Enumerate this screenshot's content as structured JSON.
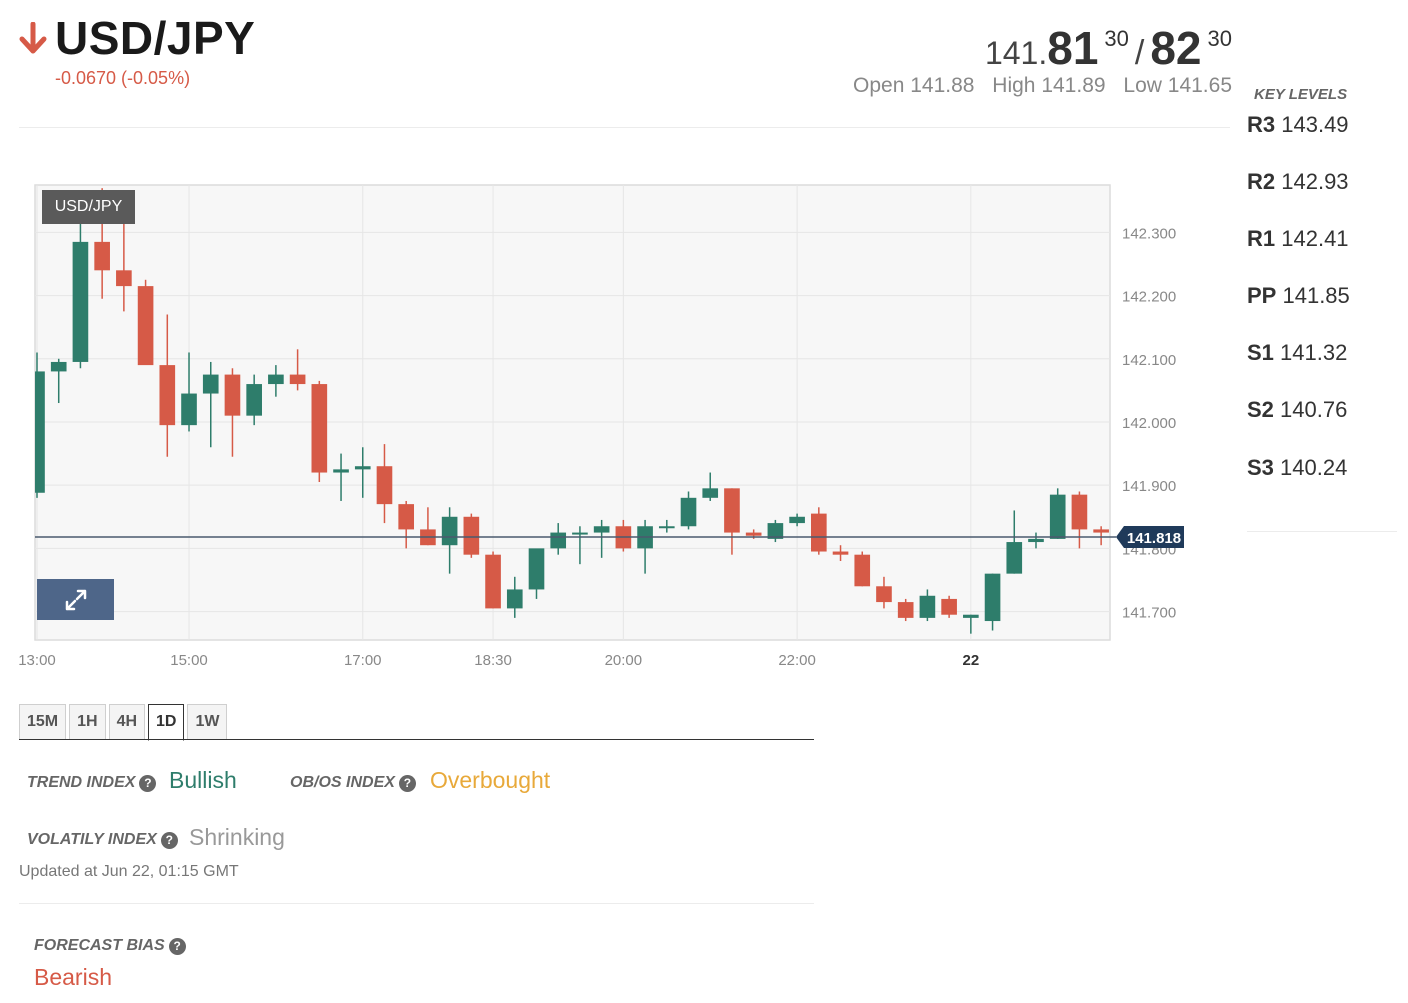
{
  "header": {
    "pair": "USD/JPY",
    "change": "-0.0670 (-0.05%)",
    "quote": {
      "bid_prefix": "141.",
      "bid_main": "81",
      "bid_sup": "30",
      "separator": "/",
      "ask_main": "82",
      "ask_sup": "30"
    },
    "open": "Open 141.88",
    "high": "High 141.89",
    "low": "Low 141.65",
    "colors": {
      "down": "#d65a47"
    }
  },
  "key_levels": {
    "title": "KEY LEVELS",
    "levels": [
      {
        "label": "R3",
        "value": "143.49"
      },
      {
        "label": "R2",
        "value": "142.93"
      },
      {
        "label": "R1",
        "value": "142.41"
      },
      {
        "label": "PP",
        "value": "141.85"
      },
      {
        "label": "S1",
        "value": "141.32"
      },
      {
        "label": "S2",
        "value": "140.76"
      },
      {
        "label": "S3",
        "value": "140.24"
      }
    ]
  },
  "chart_data": {
    "type": "candlestick",
    "symbol_label": "USD/JPY",
    "y_ticks": [
      "142.300",
      "142.200",
      "142.100",
      "142.000",
      "141.900",
      "141.800",
      "141.700"
    ],
    "y_tick_values": [
      142.3,
      142.2,
      142.1,
      142.0,
      141.9,
      141.8,
      141.7
    ],
    "ylim": [
      141.655,
      142.375
    ],
    "x_ticks": [
      {
        "label": "13:00",
        "t": 0
      },
      {
        "label": "15:00",
        "t": 7
      },
      {
        "label": "17:00",
        "t": 15
      },
      {
        "label": "18:30",
        "t": 21
      },
      {
        "label": "20:00",
        "t": 27
      },
      {
        "label": "22:00",
        "t": 35
      },
      {
        "label": "22",
        "t": 43,
        "bold": true
      }
    ],
    "last_price": {
      "label": "141.818",
      "value": 141.818
    },
    "colors": {
      "up": "#2e7d6b",
      "down": "#d65a47",
      "grid": "#e6e6e6",
      "background": "#f7f7f7",
      "price_tag": "#1f3a5a"
    },
    "candles": [
      {
        "o": 141.888,
        "h": 142.11,
        "l": 141.88,
        "c": 142.08
      },
      {
        "o": 142.08,
        "h": 142.1,
        "l": 142.03,
        "c": 142.095
      },
      {
        "o": 142.095,
        "h": 142.35,
        "l": 142.085,
        "c": 142.285
      },
      {
        "o": 142.285,
        "h": 142.37,
        "l": 142.195,
        "c": 142.24
      },
      {
        "o": 142.24,
        "h": 142.36,
        "l": 142.175,
        "c": 142.215
      },
      {
        "o": 142.215,
        "h": 142.225,
        "l": 142.095,
        "c": 142.09
      },
      {
        "o": 142.09,
        "h": 142.17,
        "l": 141.945,
        "c": 141.995
      },
      {
        "o": 141.995,
        "h": 142.11,
        "l": 141.985,
        "c": 142.045
      },
      {
        "o": 142.045,
        "h": 142.095,
        "l": 141.96,
        "c": 142.075
      },
      {
        "o": 142.075,
        "h": 142.085,
        "l": 141.945,
        "c": 142.01
      },
      {
        "o": 142.01,
        "h": 142.075,
        "l": 141.995,
        "c": 142.06
      },
      {
        "o": 142.06,
        "h": 142.09,
        "l": 142.04,
        "c": 142.075
      },
      {
        "o": 142.075,
        "h": 142.115,
        "l": 142.05,
        "c": 142.06
      },
      {
        "o": 142.06,
        "h": 142.065,
        "l": 141.905,
        "c": 141.92
      },
      {
        "o": 141.92,
        "h": 141.95,
        "l": 141.875,
        "c": 141.925
      },
      {
        "o": 141.925,
        "h": 141.96,
        "l": 141.88,
        "c": 141.93
      },
      {
        "o": 141.93,
        "h": 141.965,
        "l": 141.84,
        "c": 141.87
      },
      {
        "o": 141.87,
        "h": 141.875,
        "l": 141.8,
        "c": 141.83
      },
      {
        "o": 141.83,
        "h": 141.865,
        "l": 141.805,
        "c": 141.805
      },
      {
        "o": 141.805,
        "h": 141.865,
        "l": 141.76,
        "c": 141.85
      },
      {
        "o": 141.85,
        "h": 141.855,
        "l": 141.785,
        "c": 141.79
      },
      {
        "o": 141.79,
        "h": 141.795,
        "l": 141.705,
        "c": 141.705
      },
      {
        "o": 141.705,
        "h": 141.755,
        "l": 141.69,
        "c": 141.735
      },
      {
        "o": 141.735,
        "h": 141.795,
        "l": 141.72,
        "c": 141.8
      },
      {
        "o": 141.8,
        "h": 141.84,
        "l": 141.79,
        "c": 141.825
      },
      {
        "o": 141.825,
        "h": 141.835,
        "l": 141.775,
        "c": 141.825
      },
      {
        "o": 141.825,
        "h": 141.845,
        "l": 141.785,
        "c": 141.835
      },
      {
        "o": 141.835,
        "h": 141.845,
        "l": 141.795,
        "c": 141.8
      },
      {
        "o": 141.8,
        "h": 141.845,
        "l": 141.76,
        "c": 141.835
      },
      {
        "o": 141.835,
        "h": 141.845,
        "l": 141.825,
        "c": 141.835
      },
      {
        "o": 141.835,
        "h": 141.89,
        "l": 141.83,
        "c": 141.88
      },
      {
        "o": 141.88,
        "h": 141.92,
        "l": 141.875,
        "c": 141.895
      },
      {
        "o": 141.895,
        "h": 141.895,
        "l": 141.79,
        "c": 141.825
      },
      {
        "o": 141.825,
        "h": 141.83,
        "l": 141.815,
        "c": 141.82
      },
      {
        "o": 141.815,
        "h": 141.845,
        "l": 141.81,
        "c": 141.84
      },
      {
        "o": 141.84,
        "h": 141.855,
        "l": 141.835,
        "c": 141.85
      },
      {
        "o": 141.855,
        "h": 141.865,
        "l": 141.79,
        "c": 141.795
      },
      {
        "o": 141.795,
        "h": 141.805,
        "l": 141.78,
        "c": 141.79
      },
      {
        "o": 141.79,
        "h": 141.795,
        "l": 141.74,
        "c": 141.74
      },
      {
        "o": 141.74,
        "h": 141.755,
        "l": 141.705,
        "c": 141.715
      },
      {
        "o": 141.715,
        "h": 141.72,
        "l": 141.685,
        "c": 141.69
      },
      {
        "o": 141.69,
        "h": 141.735,
        "l": 141.685,
        "c": 141.725
      },
      {
        "o": 141.72,
        "h": 141.725,
        "l": 141.69,
        "c": 141.695
      },
      {
        "o": 141.69,
        "h": 141.695,
        "l": 141.665,
        "c": 141.695
      },
      {
        "o": 141.685,
        "h": 141.76,
        "l": 141.67,
        "c": 141.76
      },
      {
        "o": 141.76,
        "h": 141.86,
        "l": 141.76,
        "c": 141.81
      },
      {
        "o": 141.81,
        "h": 141.825,
        "l": 141.8,
        "c": 141.815
      },
      {
        "o": 141.815,
        "h": 141.895,
        "l": 141.815,
        "c": 141.885
      },
      {
        "o": 141.885,
        "h": 141.89,
        "l": 141.8,
        "c": 141.83
      },
      {
        "o": 141.83,
        "h": 141.835,
        "l": 141.805,
        "c": 141.825
      }
    ]
  },
  "timeframes": {
    "tabs": [
      "15M",
      "1H",
      "4H",
      "1D",
      "1W"
    ],
    "active": "1D"
  },
  "indexes": {
    "trend": {
      "label": "TREND INDEX",
      "value": "Bullish",
      "color": "#2e7d6b"
    },
    "obos": {
      "label": "OB/OS INDEX",
      "value": "Overbought",
      "color": "#e8a93a"
    },
    "volatility": {
      "label": "VOLATILY INDEX",
      "value": "Shrinking",
      "color": "#999999"
    },
    "updated": "Updated at Jun 22, 01:15 GMT",
    "forecast": {
      "label": "FORECAST BIAS",
      "value": "Bearish",
      "color": "#d65a47"
    },
    "help_glyph": "?"
  }
}
